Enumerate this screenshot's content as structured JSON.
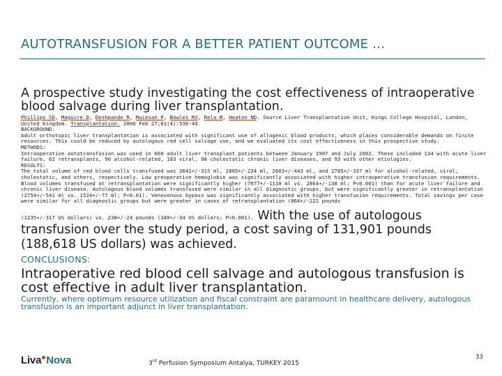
{
  "header": {
    "title": "AUTOTRANSFUSION FOR A BETTER PATIENT OUTCOME …"
  },
  "study": {
    "title": "A prospective study investigating the cost effectiveness of intraoperative blood salvage during liver transplantation.",
    "authors": [
      "Phillips SD",
      "Maguire D",
      "Deshpande R",
      "Muiesan P",
      "Bowles MJ",
      "Rela M",
      "Heaton ND"
    ],
    "source_prefix": ". Source Liver Transplantation Unit, Kings College Hospital, London, United Kingdom.",
    "journal": "Transplantation.",
    "citation": " 2006 Feb 27;81(4):536-40."
  },
  "abstract": {
    "background_label": "BACKGROUND:",
    "background": "Adult orthotopic liver transplantation is associated with significant use of allogenic blood products, which places considerable demands on finite resources. This could be reduced by autologous red cell salvage use, and we evaluated its cost effectiveness in this prospective study.",
    "methods_label": "METHODS:",
    "methods": "Intraoperative autotransfusion was used in 660 adult liver transplant patients between January 1997 and July 2002. These included 134 with acute liver failure, 62 retransplants, 90 alcohol-related, 183 viral, 98 cholestatic chronic liver diseases, and 93 with other etiologies.",
    "results_label": "RESULTS:",
    "results": "The total volume of red blood cells transfused was 3641+/-315 ml, 2805+/-234 ml, 2603+/-443 ml, and 2785+/-337 ml for alcohol-related, viral, cholestatic, and others, respectively. Low preoperative hemoglobin was significantly associated with higher intraoperative transfusion requirements. Blood volumes transfused at retransplantation were significantly higher (7077+/-1110 ml vs. 2864+/-138 ml; P<0.001) than for acute liver failure and chronic liver disease. Autologous blood volumes transfused were similar in all diagnostic groups, but were significantly greater in retransplantation (2754+/-541 ml vs. 1524+/-77 ml; P<0.01). Venovenous bypass was significantly associated with higher transfusion requirements. Total savings per case were similar for all diagnostic groups but were greater in cases of retransplantation (864+/-222 pounds",
    "results_end": "(1235+/-317 US dollars) vs. 238+/-24 pounds (340+/-34 US dollars; P<0.001).",
    "results_highlight": " With the use of autologous transfusion over the study period, a cost saving of 131,901 pounds (188,618 US dollars) was achieved."
  },
  "conclusions": {
    "label": "CONCLUSIONS:",
    "main": "Intraoperative red blood cell salvage and autologous transfusion is cost effective in adult liver transplantation.",
    "note": "Currently, where optimum resource utilization and fiscal constraint are paramount in healthcare delivery, autologous transfusion is an important adjunct in liver transplantation."
  },
  "footer": {
    "logo_part1": "Liva",
    "logo_part2": "Nova",
    "event_num": "3",
    "event_sup": "rd",
    "event_text": " Perfusion Symposium Antalya,  TURKEY 2015",
    "page_number": "33"
  },
  "colors": {
    "accent_teal": "#1f6e7e",
    "link_underline": "#d0421b",
    "text": "#1d1d1b"
  }
}
